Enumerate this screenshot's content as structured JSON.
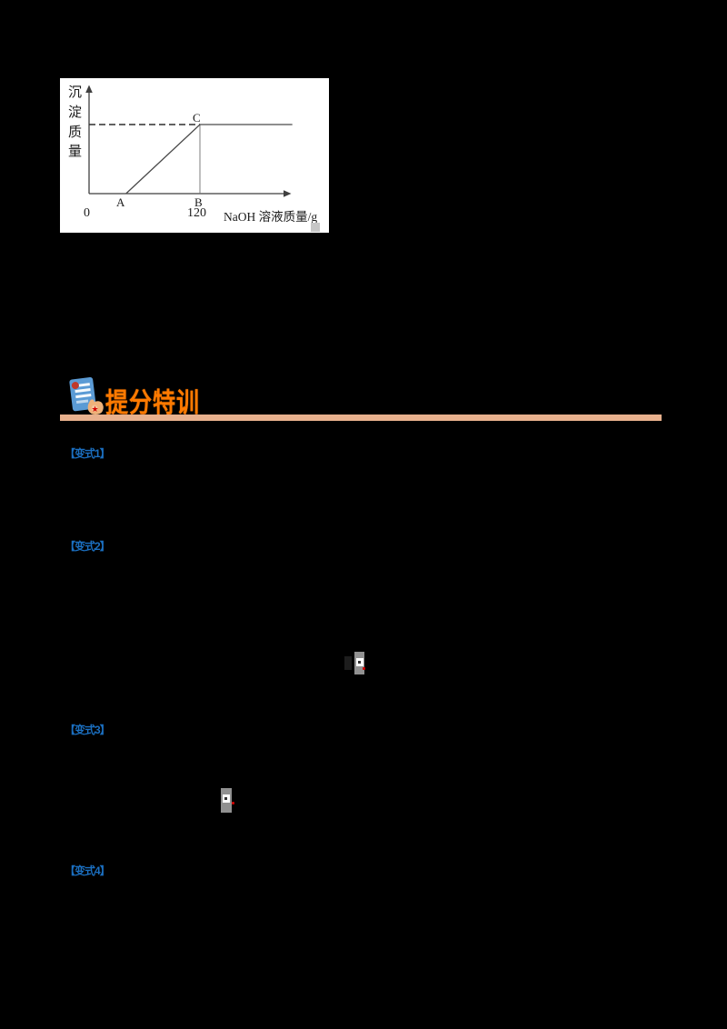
{
  "page": {
    "background": "#000000"
  },
  "header": {
    "title": "提分特训",
    "title_color": "#FF7A00",
    "underline_color": "#E8B08D",
    "icon": "document-with-hand-icon"
  },
  "chart_figure": {
    "background": "#FFFFFF",
    "border": "none"
  },
  "chart_data": {
    "type": "line",
    "title": "",
    "xlabel": "NaOH 溶液质量/g",
    "ylabel": "沉淀质量",
    "x_ticks": [
      {
        "value": 0,
        "label": "0"
      },
      {
        "value": 120,
        "label": "120"
      }
    ],
    "point_labels": {
      "A": "A",
      "B": "B",
      "C": "C"
    },
    "points": {
      "A": {
        "x": 40,
        "y": 0
      },
      "B": {
        "x": 120,
        "y": 0
      },
      "C": {
        "x": 120,
        "y": 1
      }
    },
    "series": [
      {
        "name": "precipitate-mass",
        "points": [
          [
            40,
            0
          ],
          [
            120,
            1
          ],
          [
            220,
            1
          ]
        ]
      }
    ],
    "dashed_guide": [
      [
        0,
        1
      ],
      [
        120,
        1
      ]
    ],
    "drop_line": [
      [
        120,
        1
      ],
      [
        120,
        0
      ]
    ],
    "xlim": [
      0,
      230
    ],
    "ylim": [
      0,
      1.55
    ],
    "grid": false,
    "legend": false
  },
  "sections": {
    "label_color": "#1B6FC0",
    "variations": [
      {
        "label": "【变式1】"
      },
      {
        "label": "【变式2】"
      },
      {
        "label": "【变式3】"
      },
      {
        "label": "【变式4】"
      }
    ]
  },
  "inline_fragments": {
    "box_color": "#919191",
    "inner_color": "#FFFFFF",
    "dot_color": "#CE0000"
  }
}
